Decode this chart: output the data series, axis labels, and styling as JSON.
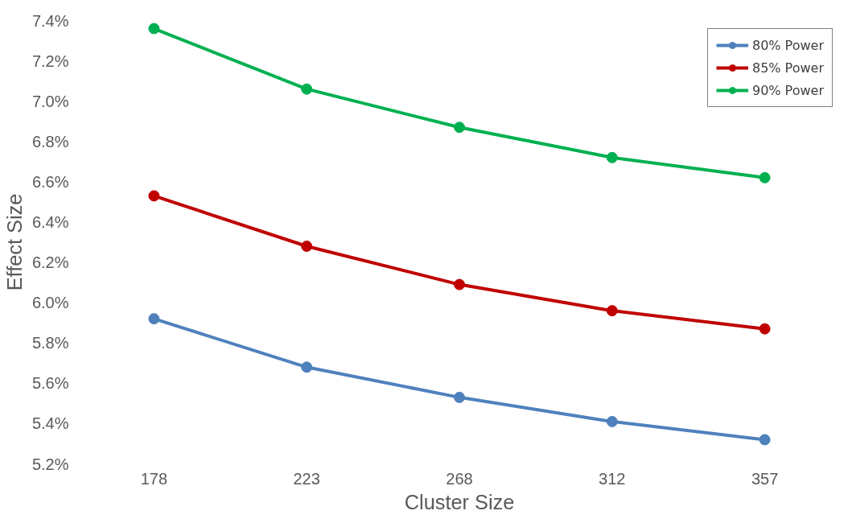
{
  "chart_data": {
    "type": "line",
    "xlabel": "Cluster Size",
    "ylabel": "Effect Size",
    "categories": [
      "178",
      "223",
      "268",
      "312",
      "357"
    ],
    "series": [
      {
        "name": "80% Power",
        "color": "#4f81bd",
        "values": [
          5.92,
          5.68,
          5.53,
          5.41,
          5.32
        ]
      },
      {
        "name": "85% Power",
        "color": "#c00000",
        "values": [
          6.53,
          6.28,
          6.09,
          5.96,
          5.87
        ]
      },
      {
        "name": "90% Power",
        "color": "#00b050",
        "values": [
          7.36,
          7.06,
          6.87,
          6.72,
          6.62
        ]
      }
    ],
    "ylim": [
      5.2,
      7.4
    ],
    "yticks": [
      {
        "value": 5.2,
        "label": "5.2%"
      },
      {
        "value": 5.4,
        "label": "5.4%"
      },
      {
        "value": 5.6,
        "label": "5.6%"
      },
      {
        "value": 5.8,
        "label": "5.8%"
      },
      {
        "value": 6.0,
        "label": "6.0%"
      },
      {
        "value": 6.2,
        "label": "6.2%"
      },
      {
        "value": 6.4,
        "label": "6.4%"
      },
      {
        "value": 6.6,
        "label": "6.6%"
      },
      {
        "value": 6.8,
        "label": "6.8%"
      },
      {
        "value": 7.0,
        "label": "7.0%"
      },
      {
        "value": 7.2,
        "label": "7.2%"
      },
      {
        "value": 7.4,
        "label": "7.4%"
      }
    ],
    "grid": false,
    "legend": "top right",
    "marker": "circle",
    "line_style": "solid"
  }
}
